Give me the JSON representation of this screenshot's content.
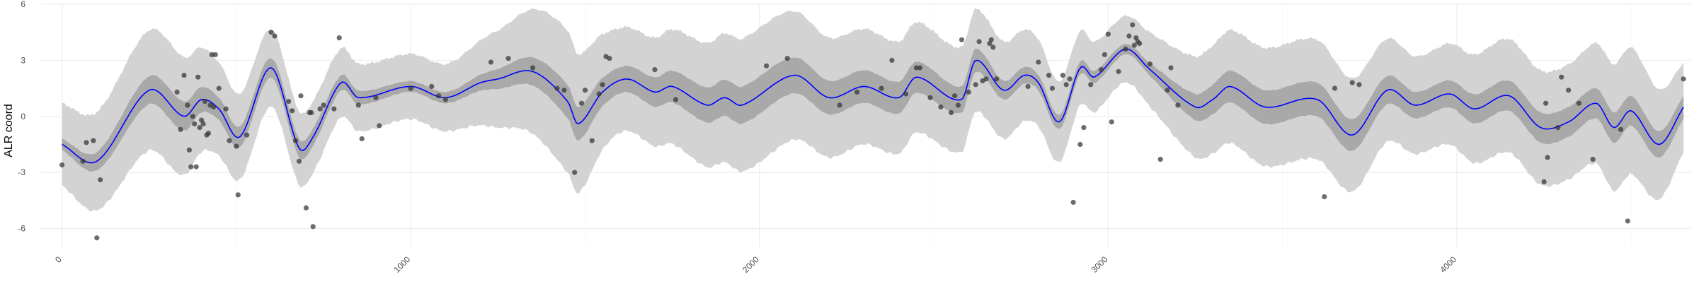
{
  "chart_data": {
    "type": "line",
    "title": "",
    "xlabel": "",
    "ylabel": "ALR coord",
    "xlim": [
      -60,
      4670
    ],
    "ylim": [
      -7,
      6
    ],
    "x_ticks": [
      0,
      1000,
      2000,
      3000,
      4000
    ],
    "x_tick_labels": [
      "0",
      "1000",
      "2000",
      "3000",
      "4000"
    ],
    "y_ticks": [
      -6,
      -3,
      0,
      3,
      6
    ],
    "y_tick_labels": [
      "-6",
      "-3",
      "0",
      "3",
      "6"
    ],
    "grid": true,
    "legend": "none",
    "colors": {
      "mean_line": "#0000ff",
      "inner_band": "#a9a9a9",
      "outer_band": "#d3d3d3",
      "points": "#333333",
      "grid": "#ebebeb",
      "tick_text": "#4d4d4d"
    },
    "series": [
      {
        "kind": "mean",
        "x": [
          0,
          100,
          250,
          350,
          400,
          450,
          510,
          600,
          680,
          720,
          800,
          850,
          1000,
          1100,
          1200,
          1250,
          1350,
          1450,
          1480,
          1550,
          1620,
          1700,
          1750,
          1850,
          1900,
          1950,
          2100,
          2200,
          2300,
          2400,
          2450,
          2580,
          2620,
          2700,
          2760,
          2800,
          2860,
          2920,
          2960,
          3050,
          3120,
          3250,
          3300,
          3350,
          3450,
          3600,
          3700,
          3800,
          3880,
          3980,
          4050,
          4150,
          4240,
          4320,
          4400,
          4450,
          4500,
          4580,
          4650
        ],
        "y": [
          -1.5,
          -2.4,
          1.4,
          0.0,
          0.9,
          0.4,
          -1.1,
          2.6,
          -1.7,
          -1.1,
          1.8,
          1.0,
          1.6,
          1.0,
          1.8,
          2.0,
          2.4,
          0.8,
          -0.4,
          1.3,
          2.0,
          1.3,
          1.6,
          0.6,
          1.0,
          0.6,
          2.2,
          1.0,
          1.6,
          1.0,
          2.1,
          0.9,
          3.0,
          1.4,
          2.2,
          1.8,
          -0.3,
          2.6,
          2.1,
          3.6,
          2.5,
          0.5,
          0.9,
          1.6,
          0.5,
          0.9,
          -1.0,
          1.4,
          0.6,
          1.2,
          0.4,
          1.1,
          -0.6,
          -0.3,
          0.7,
          -0.6,
          0.3,
          -1.5,
          0.5
        ]
      },
      {
        "kind": "inner_band_half_width",
        "x": [
          0,
          300,
          450,
          650,
          1100,
          1450,
          1600,
          1800,
          2000,
          2200,
          2500,
          2700,
          3000,
          3100,
          3300,
          3600,
          3900,
          4100,
          4350,
          4500,
          4650
        ],
        "y": [
          0.3,
          0.8,
          0.6,
          0.5,
          0.3,
          0.9,
          0.7,
          0.9,
          1.0,
          0.9,
          0.8,
          0.5,
          0.3,
          0.3,
          0.8,
          0.9,
          0.7,
          0.8,
          0.8,
          0.8,
          0.6
        ]
      },
      {
        "kind": "outer_band_half_width",
        "x": [
          0,
          300,
          450,
          650,
          1100,
          1250,
          1450,
          1600,
          1800,
          2000,
          2200,
          2500,
          2700,
          3000,
          3100,
          3300,
          3600,
          3900,
          4100,
          4350,
          4500,
          4650
        ],
        "y": [
          2.2,
          3.3,
          2.5,
          2.0,
          1.8,
          2.6,
          3.8,
          2.8,
          3.2,
          3.6,
          3.2,
          2.9,
          2.6,
          1.8,
          1.9,
          2.9,
          3.2,
          2.6,
          3.0,
          3.1,
          3.4,
          2.4
        ]
      },
      {
        "kind": "points",
        "points": [
          [
            0,
            -2.6
          ],
          [
            60,
            -2.4
          ],
          [
            70,
            -1.4
          ],
          [
            90,
            -1.3
          ],
          [
            100,
            -6.5
          ],
          [
            110,
            -3.4
          ],
          [
            330,
            1.3
          ],
          [
            340,
            -0.7
          ],
          [
            350,
            2.2
          ],
          [
            360,
            0.6
          ],
          [
            365,
            -1.8
          ],
          [
            370,
            -2.7
          ],
          [
            375,
            0.0
          ],
          [
            380,
            -0.4
          ],
          [
            385,
            -2.7
          ],
          [
            390,
            2.1
          ],
          [
            395,
            -0.6
          ],
          [
            400,
            -0.2
          ],
          [
            405,
            -0.4
          ],
          [
            410,
            0.8
          ],
          [
            415,
            -1.0
          ],
          [
            420,
            -0.9
          ],
          [
            425,
            0.6
          ],
          [
            430,
            3.3
          ],
          [
            435,
            0.5
          ],
          [
            440,
            3.3
          ],
          [
            450,
            1.5
          ],
          [
            470,
            0.4
          ],
          [
            480,
            -1.3
          ],
          [
            500,
            -1.6
          ],
          [
            505,
            -4.2
          ],
          [
            530,
            -1.0
          ],
          [
            600,
            4.5
          ],
          [
            610,
            4.3
          ],
          [
            650,
            0.8
          ],
          [
            660,
            0.3
          ],
          [
            670,
            -1.3
          ],
          [
            680,
            -2.4
          ],
          [
            685,
            1.1
          ],
          [
            700,
            -4.9
          ],
          [
            710,
            0.2
          ],
          [
            715,
            0.2
          ],
          [
            720,
            -5.9
          ],
          [
            740,
            0.4
          ],
          [
            750,
            0.6
          ],
          [
            780,
            0.4
          ],
          [
            795,
            4.2
          ],
          [
            850,
            0.6
          ],
          [
            860,
            -1.2
          ],
          [
            900,
            1.0
          ],
          [
            910,
            -0.5
          ],
          [
            1000,
            1.5
          ],
          [
            1060,
            1.6
          ],
          [
            1080,
            1.1
          ],
          [
            1100,
            0.9
          ],
          [
            1230,
            2.9
          ],
          [
            1280,
            3.1
          ],
          [
            1350,
            2.6
          ],
          [
            1420,
            1.5
          ],
          [
            1440,
            1.4
          ],
          [
            1470,
            -3.0
          ],
          [
            1490,
            0.7
          ],
          [
            1500,
            1.4
          ],
          [
            1520,
            -1.3
          ],
          [
            1540,
            1.2
          ],
          [
            1550,
            1.7
          ],
          [
            1560,
            3.2
          ],
          [
            1570,
            3.1
          ],
          [
            1700,
            2.5
          ],
          [
            1760,
            0.9
          ],
          [
            2020,
            2.7
          ],
          [
            2080,
            3.1
          ],
          [
            2230,
            0.6
          ],
          [
            2280,
            1.3
          ],
          [
            2350,
            1.5
          ],
          [
            2380,
            3.0
          ],
          [
            2420,
            1.2
          ],
          [
            2450,
            2.6
          ],
          [
            2460,
            2.6
          ],
          [
            2490,
            1.0
          ],
          [
            2520,
            0.5
          ],
          [
            2550,
            0.2
          ],
          [
            2560,
            1.1
          ],
          [
            2570,
            0.6
          ],
          [
            2580,
            4.1
          ],
          [
            2600,
            1.3
          ],
          [
            2620,
            1.7
          ],
          [
            2630,
            4.0
          ],
          [
            2640,
            1.9
          ],
          [
            2650,
            2.0
          ],
          [
            2660,
            3.9
          ],
          [
            2665,
            4.1
          ],
          [
            2670,
            3.7
          ],
          [
            2680,
            2.0
          ],
          [
            2770,
            1.6
          ],
          [
            2800,
            2.9
          ],
          [
            2830,
            2.2
          ],
          [
            2840,
            1.5
          ],
          [
            2870,
            2.2
          ],
          [
            2880,
            1.7
          ],
          [
            2890,
            2.0
          ],
          [
            2900,
            -4.6
          ],
          [
            2920,
            -1.5
          ],
          [
            2930,
            -0.6
          ],
          [
            2950,
            1.7
          ],
          [
            2980,
            2.5
          ],
          [
            2990,
            3.3
          ],
          [
            3000,
            4.4
          ],
          [
            3010,
            -0.3
          ],
          [
            3030,
            2.4
          ],
          [
            3050,
            3.6
          ],
          [
            3060,
            4.3
          ],
          [
            3070,
            4.9
          ],
          [
            3075,
            3.8
          ],
          [
            3080,
            4.2
          ],
          [
            3085,
            4.0
          ],
          [
            3090,
            3.9
          ],
          [
            3120,
            2.8
          ],
          [
            3150,
            -2.3
          ],
          [
            3170,
            1.4
          ],
          [
            3180,
            2.6
          ],
          [
            3200,
            0.6
          ],
          [
            3620,
            -4.3
          ],
          [
            3650,
            1.5
          ],
          [
            3700,
            1.8
          ],
          [
            3720,
            1.7
          ],
          [
            4250,
            -3.5
          ],
          [
            4255,
            0.7
          ],
          [
            4260,
            -2.2
          ],
          [
            4290,
            -0.6
          ],
          [
            4300,
            2.1
          ],
          [
            4320,
            1.4
          ],
          [
            4350,
            0.7
          ],
          [
            4390,
            -2.3
          ],
          [
            4470,
            -0.7
          ],
          [
            4490,
            -5.6
          ],
          [
            4650,
            2.0
          ]
        ]
      }
    ]
  }
}
